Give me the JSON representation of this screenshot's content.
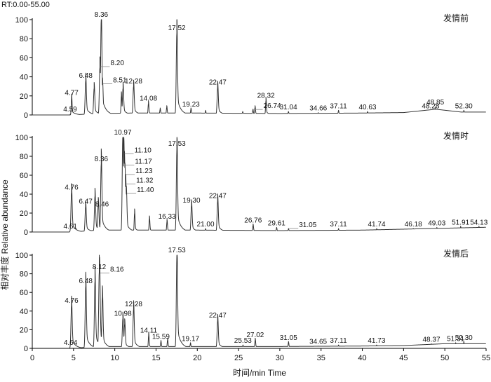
{
  "header": {
    "rt_range": "RT:0.00-55.00"
  },
  "chart_data": {
    "type": "line",
    "xlabel": "时间/min Time",
    "ylabel": "相对丰度 Relative abundance",
    "xlim": [
      0,
      55
    ],
    "ylim": [
      0,
      100
    ],
    "x_ticks": [
      "0",
      "5",
      "10",
      "15",
      "20",
      "25",
      "30",
      "35",
      "40",
      "45",
      "50",
      "55"
    ],
    "y_ticks": [
      "0",
      "20",
      "40",
      "60",
      "80",
      "100"
    ],
    "panels": [
      {
        "name": "发情前",
        "baseline": [
          [
            0,
            0
          ],
          [
            4.7,
            0
          ],
          [
            8,
            1.5
          ],
          [
            12,
            2
          ],
          [
            20,
            2
          ],
          [
            30,
            1.5
          ],
          [
            40,
            2
          ],
          [
            45,
            2.5
          ],
          [
            48.9,
            6
          ],
          [
            52,
            3
          ],
          [
            55,
            3
          ]
        ],
        "peaks": [
          {
            "rt": 4.59,
            "y": 0.6,
            "label": "4.59"
          },
          {
            "rt": 4.77,
            "y": 18,
            "label": "4.77"
          },
          {
            "rt": 6.48,
            "y": 36,
            "label": "6.48"
          },
          {
            "rt": 7.5,
            "y": 28
          },
          {
            "rt": 8.2,
            "y": 50,
            "label": "8.20",
            "leader": true
          },
          {
            "rt": 8.36,
            "y": 100,
            "label": "8.36"
          },
          {
            "rt": 8.51,
            "y": 32,
            "label": "8.51",
            "leader": true
          },
          {
            "rt": 10.8,
            "y": 20
          },
          {
            "rt": 11.0,
            "y": 28
          },
          {
            "rt": 12.28,
            "y": 30,
            "label": "12.28"
          },
          {
            "rt": 14.08,
            "y": 12,
            "label": "14.08"
          },
          {
            "rt": 15.5,
            "y": 6
          },
          {
            "rt": 16.3,
            "y": 8
          },
          {
            "rt": 17.52,
            "y": 86,
            "label": "17.52"
          },
          {
            "rt": 19.23,
            "y": 6,
            "label": "19.23"
          },
          {
            "rt": 21.0,
            "y": 4
          },
          {
            "rt": 22.47,
            "y": 29,
            "label": "22.47"
          },
          {
            "rt": 25.5,
            "y": 3
          },
          {
            "rt": 26.74,
            "y": 5,
            "label": "26.74",
            "leader": true
          },
          {
            "rt": 27.0,
            "y": 8
          },
          {
            "rt": 28.32,
            "y": 15,
            "label": "28.32"
          },
          {
            "rt": 31.04,
            "y": 3,
            "label": "31.04"
          },
          {
            "rt": 34.66,
            "y": 2,
            "label": "34.66"
          },
          {
            "rt": 37.11,
            "y": 4,
            "label": "37.11"
          },
          {
            "rt": 40.63,
            "y": 3,
            "label": "40.63"
          },
          {
            "rt": 48.28,
            "y": 4,
            "label": "48.28"
          },
          {
            "rt": 48.85,
            "y": 8,
            "label": "48.85",
            "broad": true
          },
          {
            "rt": 52.3,
            "y": 4,
            "label": "52.30"
          }
        ]
      },
      {
        "name": "发情时",
        "baseline": [
          [
            0,
            0
          ],
          [
            4.7,
            0
          ],
          [
            8,
            2
          ],
          [
            12,
            2
          ],
          [
            20,
            2
          ],
          [
            30,
            1.5
          ],
          [
            40,
            2
          ],
          [
            45,
            3
          ],
          [
            50,
            4
          ],
          [
            55,
            5
          ]
        ],
        "peaks": [
          {
            "rt": 4.61,
            "y": 0.6,
            "label": "4.61"
          },
          {
            "rt": 4.76,
            "y": 42,
            "label": "4.76"
          },
          {
            "rt": 6.47,
            "y": 27,
            "label": "6.47"
          },
          {
            "rt": 7.6,
            "y": 38
          },
          {
            "rt": 8.0,
            "y": 30
          },
          {
            "rt": 8.36,
            "y": 72,
            "label": "8.36"
          },
          {
            "rt": 8.46,
            "y": 24,
            "label": "8.46"
          },
          {
            "rt": 10.97,
            "y": 100,
            "label": "10.97"
          },
          {
            "rt": 11.1,
            "y": 82,
            "label": "11.10",
            "leader": true
          },
          {
            "rt": 11.17,
            "y": 70,
            "label": "11.17",
            "leader": true
          },
          {
            "rt": 11.23,
            "y": 60,
            "label": "11.23",
            "leader": true
          },
          {
            "rt": 11.32,
            "y": 50,
            "label": "11.32",
            "leader": true
          },
          {
            "rt": 11.4,
            "y": 40,
            "label": "11.40",
            "leader": true
          },
          {
            "rt": 12.4,
            "y": 20
          },
          {
            "rt": 14.2,
            "y": 14
          },
          {
            "rt": 16.33,
            "y": 11,
            "label": "16.33"
          },
          {
            "rt": 17.53,
            "y": 88,
            "label": "17.53"
          },
          {
            "rt": 19.3,
            "y": 28,
            "label": "19.30"
          },
          {
            "rt": 21.0,
            "y": 3,
            "label": "21.00"
          },
          {
            "rt": 22.47,
            "y": 33,
            "label": "22.47"
          },
          {
            "rt": 26.76,
            "y": 7,
            "label": "26.76"
          },
          {
            "rt": 29.61,
            "y": 4,
            "label": "29.61"
          },
          {
            "rt": 31.05,
            "y": 3,
            "label": "31.05",
            "leader": true
          },
          {
            "rt": 37.11,
            "y": 3,
            "label": "37.11"
          },
          {
            "rt": 41.74,
            "y": 3,
            "label": "41.74"
          },
          {
            "rt": 46.18,
            "y": 3,
            "label": "46.18"
          },
          {
            "rt": 49.03,
            "y": 4,
            "label": "49.03"
          },
          {
            "rt": 51.91,
            "y": 5,
            "label": "51.91"
          },
          {
            "rt": 54.13,
            "y": 5,
            "label": "54.13"
          }
        ]
      },
      {
        "name": "发情后",
        "baseline": [
          [
            0,
            0
          ],
          [
            4.7,
            0
          ],
          [
            8,
            2
          ],
          [
            12,
            2
          ],
          [
            20,
            2
          ],
          [
            30,
            2
          ],
          [
            40,
            2.5
          ],
          [
            45,
            3
          ],
          [
            50,
            5
          ],
          [
            55,
            5
          ]
        ],
        "peaks": [
          {
            "rt": 4.64,
            "y": 0.6,
            "label": "4.64"
          },
          {
            "rt": 4.76,
            "y": 46,
            "label": "4.76"
          },
          {
            "rt": 6.48,
            "y": 67,
            "label": "6.48"
          },
          {
            "rt": 7.6,
            "y": 72
          },
          {
            "rt": 8.12,
            "y": 82,
            "label": "8.12"
          },
          {
            "rt": 8.16,
            "y": 80,
            "label": "8.16",
            "leader": true
          },
          {
            "rt": 8.5,
            "y": 55
          },
          {
            "rt": 10.98,
            "y": 32,
            "label": "10.98"
          },
          {
            "rt": 11.2,
            "y": 26
          },
          {
            "rt": 12.28,
            "y": 42,
            "label": "12.28"
          },
          {
            "rt": 14.11,
            "y": 14,
            "label": "14.11"
          },
          {
            "rt": 15.59,
            "y": 7,
            "label": "15.59"
          },
          {
            "rt": 16.4,
            "y": 9
          },
          {
            "rt": 17.53,
            "y": 100,
            "label": "17.53"
          },
          {
            "rt": 19.17,
            "y": 5,
            "label": "19.17"
          },
          {
            "rt": 22.47,
            "y": 30,
            "label": "22.47"
          },
          {
            "rt": 25.53,
            "y": 3,
            "label": "25.53"
          },
          {
            "rt": 27.02,
            "y": 9,
            "label": "27.02"
          },
          {
            "rt": 31.05,
            "y": 6,
            "label": "31.05"
          },
          {
            "rt": 34.65,
            "y": 2,
            "label": "34.65"
          },
          {
            "rt": 37.11,
            "y": 3,
            "label": "37.11"
          },
          {
            "rt": 41.73,
            "y": 3,
            "label": "41.73"
          },
          {
            "rt": 48.37,
            "y": 4,
            "label": "48.37"
          },
          {
            "rt": 51.31,
            "y": 5,
            "label": "51.31"
          },
          {
            "rt": 52.3,
            "y": 6,
            "label": "52.30"
          }
        ]
      }
    ]
  }
}
